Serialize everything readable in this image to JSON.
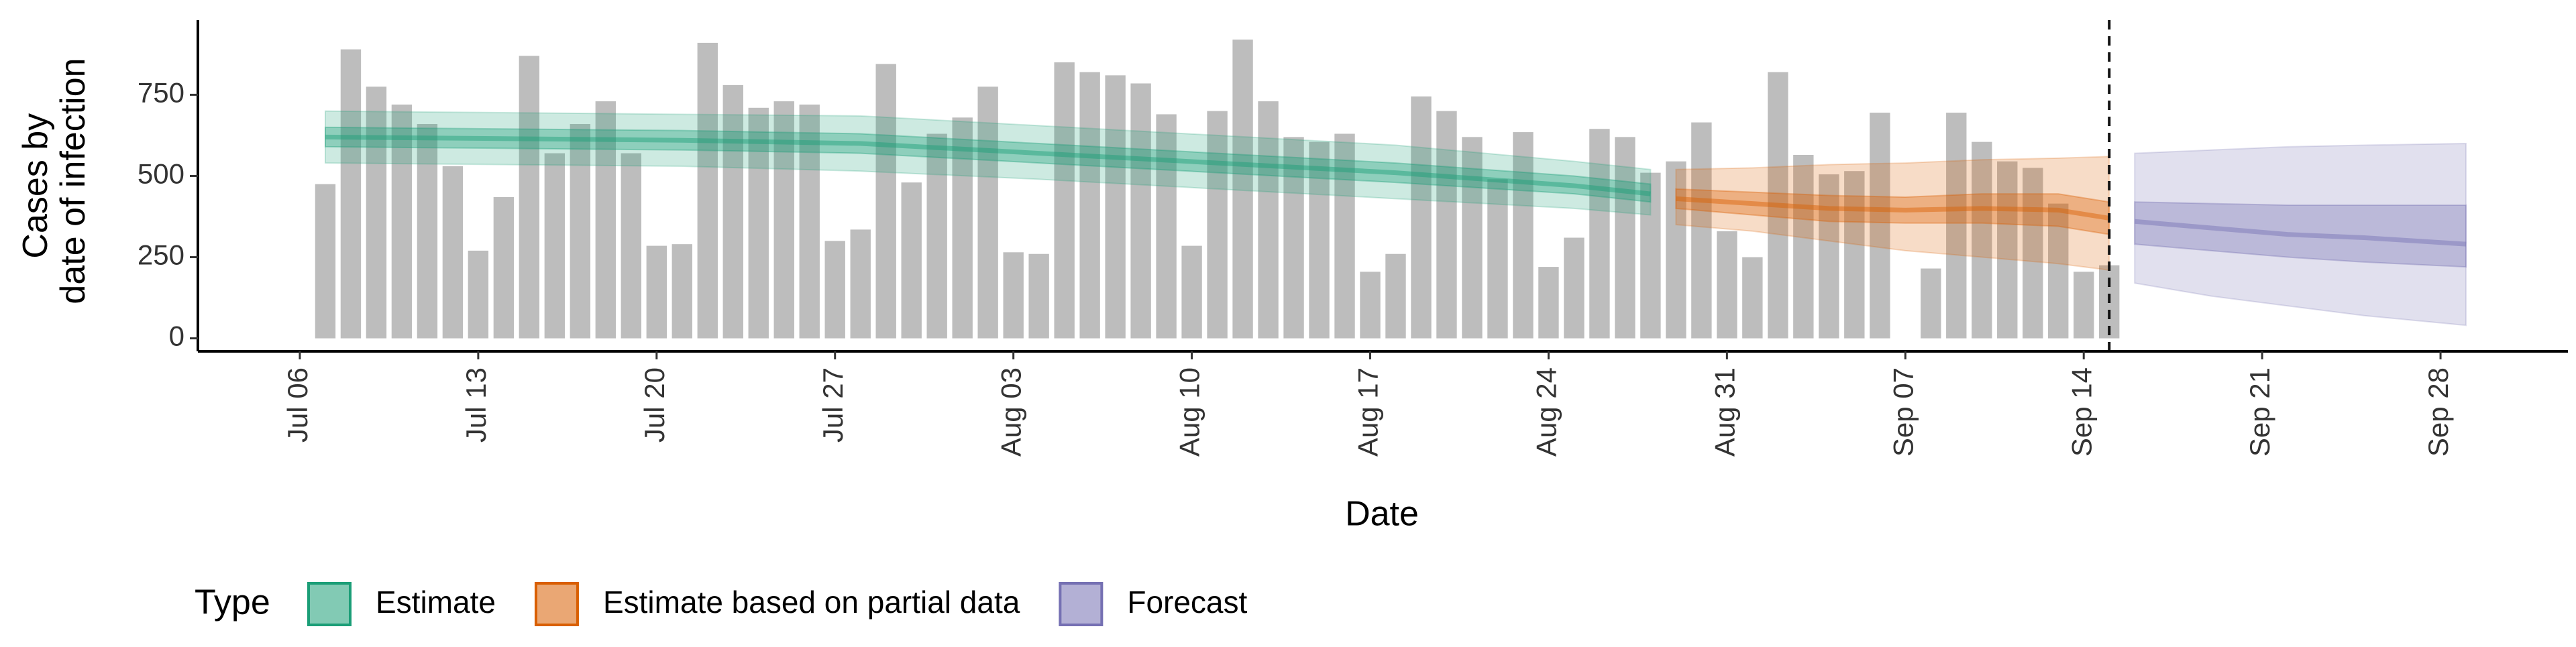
{
  "chart_data": {
    "type": "epi-bars-ribbons",
    "xlabel": "Date",
    "ylabel": [
      "Cases by",
      "date of infection"
    ],
    "legend_title": "Type",
    "xlim": [
      "Jul 02",
      "Oct 03"
    ],
    "ylim": [
      -40,
      980
    ],
    "yticks": [
      0,
      250,
      500,
      750
    ],
    "xticks": [
      "Jul 06",
      "Jul 13",
      "Jul 20",
      "Jul 27",
      "Aug 03",
      "Aug 10",
      "Aug 17",
      "Aug 24",
      "Aug 31",
      "Sep 07",
      "Sep 14",
      "Sep 21",
      "Sep 28"
    ],
    "vline": "Sep 15",
    "bar_color": "#bdbdbd",
    "x": [
      "Jul 07",
      "Jul 08",
      "Jul 09",
      "Jul 10",
      "Jul 11",
      "Jul 12",
      "Jul 13",
      "Jul 14",
      "Jul 15",
      "Jul 16",
      "Jul 17",
      "Jul 18",
      "Jul 19",
      "Jul 20",
      "Jul 21",
      "Jul 22",
      "Jul 23",
      "Jul 24",
      "Jul 25",
      "Jul 26",
      "Jul 27",
      "Jul 28",
      "Jul 29",
      "Jul 30",
      "Jul 31",
      "Aug 01",
      "Aug 02",
      "Aug 03",
      "Aug 04",
      "Aug 05",
      "Aug 06",
      "Aug 07",
      "Aug 08",
      "Aug 09",
      "Aug 10",
      "Aug 11",
      "Aug 12",
      "Aug 13",
      "Aug 14",
      "Aug 15",
      "Aug 16",
      "Aug 17",
      "Aug 18",
      "Aug 19",
      "Aug 20",
      "Aug 21",
      "Aug 22",
      "Aug 23",
      "Aug 24",
      "Aug 25",
      "Aug 26",
      "Aug 27",
      "Aug 28",
      "Aug 29",
      "Aug 30",
      "Aug 31",
      "Sep 01",
      "Sep 02",
      "Sep 03",
      "Sep 04",
      "Sep 05",
      "Sep 06",
      "Sep 07",
      "Sep 08",
      "Sep 09",
      "Sep 10",
      "Sep 11",
      "Sep 12",
      "Sep 13",
      "Sep 14",
      "Sep 15"
    ],
    "values": [
      475,
      890,
      775,
      720,
      660,
      530,
      270,
      435,
      870,
      570,
      660,
      730,
      570,
      285,
      290,
      910,
      780,
      710,
      730,
      720,
      300,
      335,
      845,
      480,
      630,
      680,
      775,
      265,
      260,
      850,
      820,
      810,
      785,
      690,
      285,
      700,
      920,
      730,
      620,
      605,
      630,
      205,
      260,
      745,
      700,
      620,
      490,
      635,
      220,
      310,
      645,
      620,
      510,
      545,
      665,
      330,
      250,
      820,
      565,
      505,
      515,
      695,
      null,
      215,
      695,
      605,
      545,
      525,
      415,
      205,
      225
    ],
    "series": [
      {
        "name": "Estimate",
        "color": "#1b9e77",
        "x": [
          "Jul 07",
          "Jul 14",
          "Jul 21",
          "Jul 28",
          "Aug 04",
          "Aug 11",
          "Aug 18",
          "Aug 25",
          "Aug 28"
        ],
        "median": [
          620,
          615,
          610,
          600,
          570,
          540,
          510,
          470,
          445
        ],
        "lower_90": [
          540,
          535,
          530,
          515,
          490,
          460,
          430,
          400,
          380
        ],
        "upper_90": [
          700,
          695,
          690,
          685,
          655,
          625,
          595,
          545,
          520
        ],
        "lower_50": [
          590,
          585,
          580,
          570,
          540,
          510,
          480,
          445,
          420
        ],
        "upper_50": [
          650,
          645,
          640,
          630,
          600,
          570,
          540,
          500,
          475
        ]
      },
      {
        "name": "Estimate based on partial data",
        "color": "#d95f02",
        "x": [
          "Aug 29",
          "Sep 01",
          "Sep 04",
          "Sep 07",
          "Sep 10",
          "Sep 13",
          "Sep 15"
        ],
        "median": [
          430,
          415,
          400,
          395,
          400,
          395,
          370
        ],
        "lower_90": [
          350,
          330,
          300,
          270,
          250,
          230,
          210
        ],
        "upper_90": [
          520,
          525,
          535,
          540,
          550,
          555,
          560
        ],
        "lower_50": [
          400,
          380,
          360,
          355,
          355,
          345,
          320
        ],
        "upper_50": [
          460,
          450,
          440,
          435,
          445,
          445,
          420
        ]
      },
      {
        "name": "Forecast",
        "color": "#7570b3",
        "x": [
          "Sep 16",
          "Sep 19",
          "Sep 22",
          "Sep 25",
          "Sep 29"
        ],
        "median": [
          360,
          340,
          320,
          310,
          290
        ],
        "lower_90": [
          170,
          130,
          100,
          70,
          40
        ],
        "upper_90": [
          570,
          580,
          590,
          595,
          600
        ],
        "lower_50": [
          290,
          270,
          250,
          235,
          220
        ],
        "upper_50": [
          420,
          415,
          410,
          410,
          410
        ]
      }
    ]
  }
}
